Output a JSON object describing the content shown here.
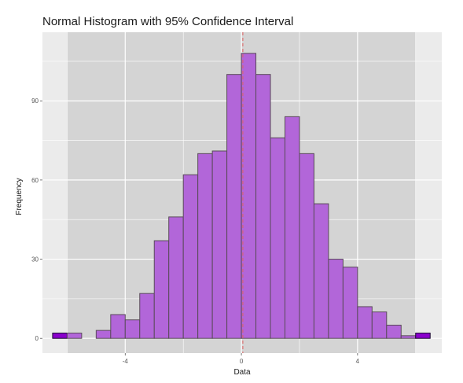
{
  "chart_data": {
    "type": "bar",
    "title": "Normal Histogram with 95% Confidence Interval",
    "xlabel": "Data",
    "ylabel": "Frequency",
    "bin_width": 0.5,
    "bins_start": [
      -6.5,
      -6.0,
      -5.5,
      -5.0,
      -4.5,
      -4.0,
      -3.5,
      -3.0,
      -2.5,
      -2.0,
      -1.5,
      -1.0,
      -0.5,
      0.0,
      0.5,
      1.0,
      1.5,
      2.0,
      2.5,
      3.0,
      3.5,
      4.0,
      4.5,
      5.0,
      5.5,
      6.0
    ],
    "values": [
      2,
      2,
      0,
      3,
      9,
      7,
      17,
      37,
      46,
      62,
      70,
      71,
      100,
      108,
      100,
      76,
      84,
      70,
      51,
      30,
      27,
      12,
      10,
      5,
      1,
      2
    ],
    "x_ticks": [
      -4,
      0,
      4
    ],
    "x_tick_labels": [
      "-4",
      "0",
      "4"
    ],
    "y_ticks": [
      0,
      30,
      60,
      90
    ],
    "y_tick_labels": [
      "0",
      "30",
      "60",
      "90"
    ],
    "xlim": [
      -6.85,
      6.9
    ],
    "ylim": [
      -5.6,
      116
    ],
    "ci_lower": -6.0,
    "ci_upper": 6.0,
    "mean": 0.05,
    "colors": {
      "panel_background": "#ebebeb",
      "ci_band": "#d4d4d4",
      "grid": "#ffffff",
      "bar_fill": "#b266d9",
      "bar_outline": "#5a4a5a",
      "tail_fill": "#8a00cc",
      "tail_outline": "#1a0033",
      "mean_line": "#e06060"
    },
    "tail_bins": [
      0,
      25
    ]
  }
}
